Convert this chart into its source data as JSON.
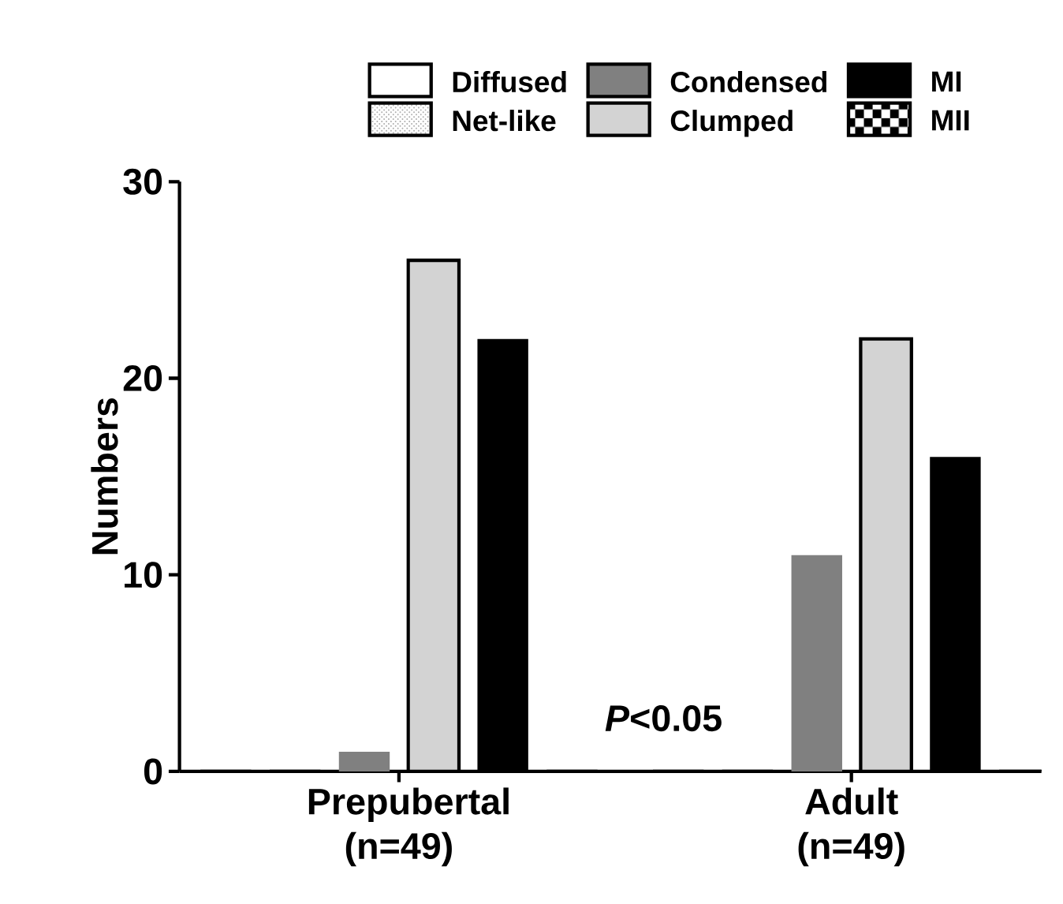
{
  "chart_data": {
    "type": "bar",
    "ylabel": "Numbers",
    "categories": [
      "Prepubertal (n=49)",
      "Adult (n=49)"
    ],
    "series": [
      {
        "name": "Diffused",
        "color": "#ffffff",
        "values": [
          0,
          0
        ]
      },
      {
        "name": "Net-like",
        "color": "#b0b0b0",
        "values": [
          0,
          0
        ]
      },
      {
        "name": "Condensed",
        "color": "#808080",
        "values": [
          1,
          11
        ]
      },
      {
        "name": "Clumped",
        "color": "#d3d3d3",
        "values": [
          26,
          22
        ]
      },
      {
        "name": "MI",
        "color": "#000000",
        "values": [
          22,
          16
        ]
      },
      {
        "name": "MII",
        "color": "#000000",
        "values": [
          0,
          0
        ]
      }
    ],
    "ylim": [
      0,
      30
    ],
    "yticks": [
      0,
      10,
      20,
      30
    ],
    "legend": "top",
    "grid": false,
    "annotations": [
      "*P*<0.05"
    ]
  }
}
